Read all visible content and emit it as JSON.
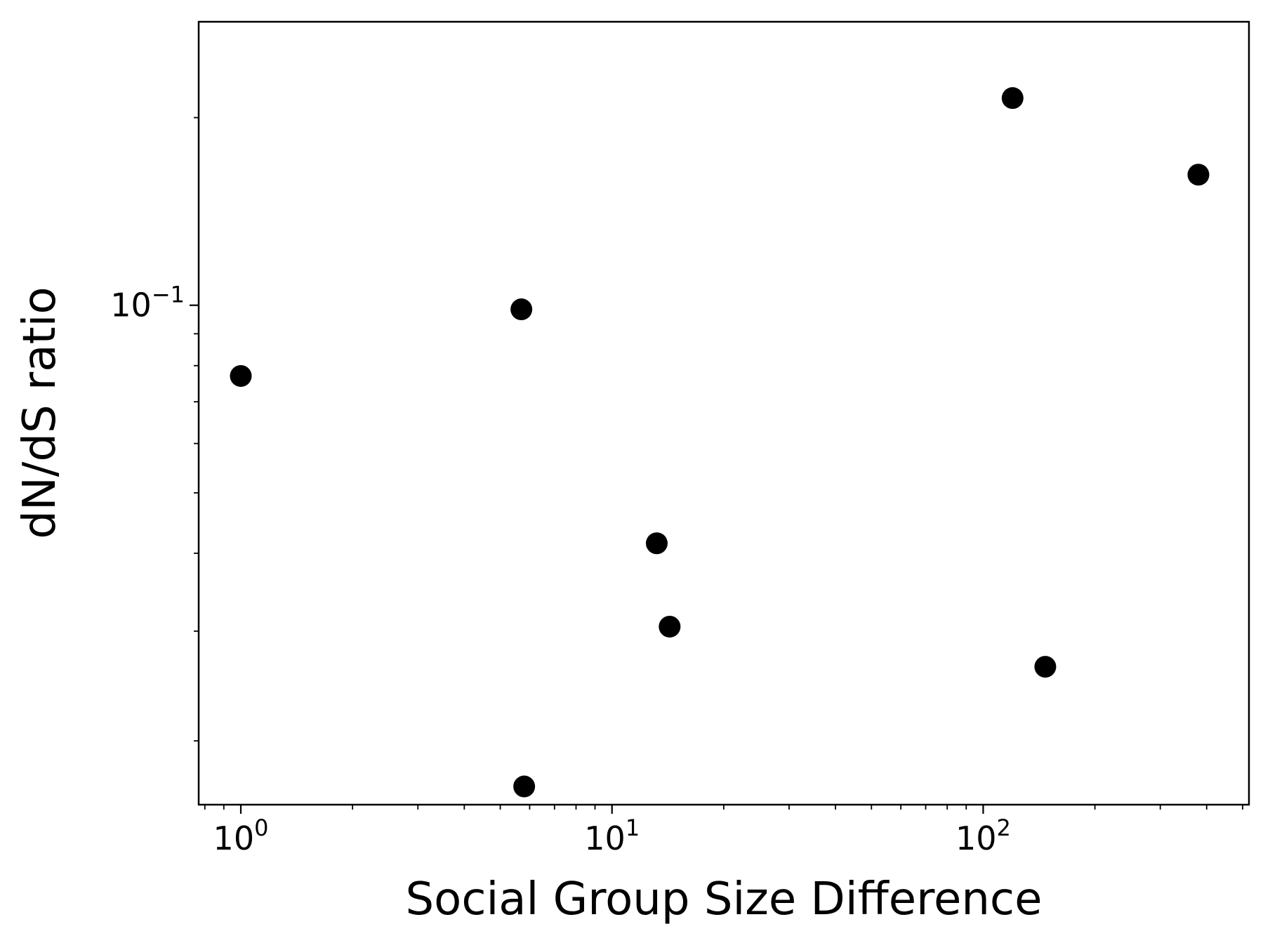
{
  "chart_data": {
    "type": "scatter",
    "title": "",
    "xlabel": "Social Group Size Difference",
    "ylabel": "dN/dS ratio",
    "x_scale": "log",
    "y_scale": "log",
    "xlim": [
      0.77,
      520
    ],
    "ylim": [
      0.0158,
      0.285
    ],
    "x_major_ticks": [
      {
        "value": 1,
        "base": "10",
        "exp": "0"
      },
      {
        "value": 10,
        "base": "10",
        "exp": "1"
      },
      {
        "value": 100,
        "base": "10",
        "exp": "2"
      }
    ],
    "y_major_ticks": [
      {
        "value": 0.1,
        "base": "10",
        "exp": "−1"
      }
    ],
    "grid": false,
    "legend": "none",
    "marker_color": "#000000",
    "series": [
      {
        "x": [
          1.0,
          5.7,
          5.8,
          13.2,
          14.3,
          120,
          147,
          380
        ],
        "y": [
          0.077,
          0.0985,
          0.0169,
          0.0415,
          0.0305,
          0.215,
          0.0263,
          0.162
        ]
      }
    ]
  }
}
